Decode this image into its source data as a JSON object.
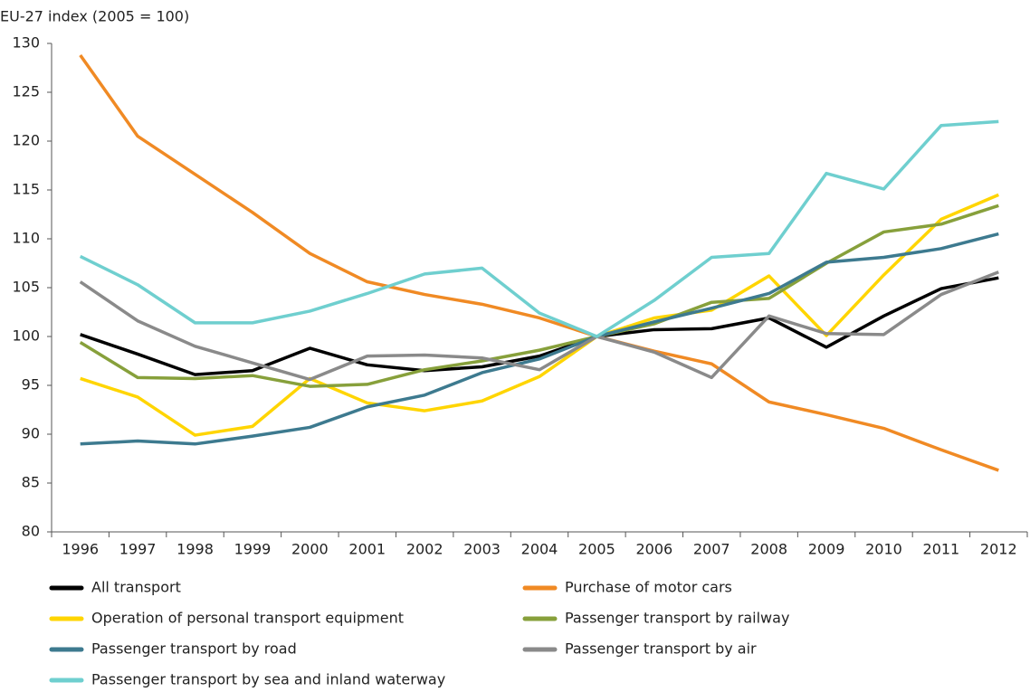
{
  "chart_data": {
    "type": "line",
    "y_label": "EU-27 index (2005 = 100)",
    "categories": [
      "1996",
      "1997",
      "1998",
      "1999",
      "2000",
      "2001",
      "2002",
      "2003",
      "2004",
      "2005",
      "2006",
      "2007",
      "2008",
      "2009",
      "2010",
      "2011",
      "2012"
    ],
    "ylim": [
      80,
      130
    ],
    "yticks": [
      80,
      85,
      90,
      95,
      100,
      105,
      110,
      115,
      120,
      125,
      130
    ],
    "legend": "bottom",
    "series": [
      {
        "name": "All transport",
        "color": "#000000",
        "values": [
          100.2,
          98.2,
          96.1,
          96.5,
          98.8,
          97.1,
          96.5,
          96.9,
          98.0,
          100,
          100.7,
          100.8,
          101.9,
          98.9,
          102.1,
          104.9,
          106.0
        ]
      },
      {
        "name": "Purchase of motor cars",
        "color": "#f08a24",
        "values": [
          128.8,
          120.5,
          116.6,
          112.7,
          108.5,
          105.6,
          104.3,
          103.3,
          101.9,
          100,
          98.5,
          97.2,
          93.3,
          92.0,
          90.6,
          88.4,
          86.3
        ]
      },
      {
        "name": "Operation of personal transport equipment",
        "color": "#ffd500",
        "values": [
          95.7,
          93.8,
          89.9,
          90.8,
          95.7,
          93.2,
          92.4,
          93.4,
          95.9,
          100,
          101.9,
          102.7,
          106.2,
          100.1,
          106.3,
          112.0,
          114.5
        ]
      },
      {
        "name": "Passenger transport by railway",
        "color": "#87a03b",
        "values": [
          99.4,
          95.8,
          95.7,
          96.0,
          94.9,
          95.1,
          96.6,
          97.5,
          98.6,
          100,
          101.3,
          103.5,
          103.9,
          107.5,
          110.7,
          111.5,
          113.4
        ]
      },
      {
        "name": "Passenger transport by road",
        "color": "#3d7a8f",
        "values": [
          89.0,
          89.3,
          89.0,
          89.8,
          90.7,
          92.8,
          94.0,
          96.3,
          97.7,
          100,
          101.5,
          102.9,
          104.4,
          107.6,
          108.1,
          109.0,
          110.5
        ]
      },
      {
        "name": "Passenger transport by air",
        "color": "#8a8a8a",
        "values": [
          105.6,
          101.6,
          99.0,
          97.3,
          95.6,
          98.0,
          98.1,
          97.8,
          96.6,
          100,
          98.4,
          95.8,
          102.1,
          100.3,
          100.2,
          104.3,
          106.6
        ]
      },
      {
        "name": "Passenger transport by sea and inland waterway",
        "color": "#6fcfcf",
        "values": [
          108.2,
          105.3,
          101.4,
          101.4,
          102.6,
          104.4,
          106.4,
          107.0,
          102.4,
          100,
          103.7,
          108.1,
          108.5,
          116.7,
          115.1,
          121.6,
          122.0
        ]
      }
    ]
  }
}
